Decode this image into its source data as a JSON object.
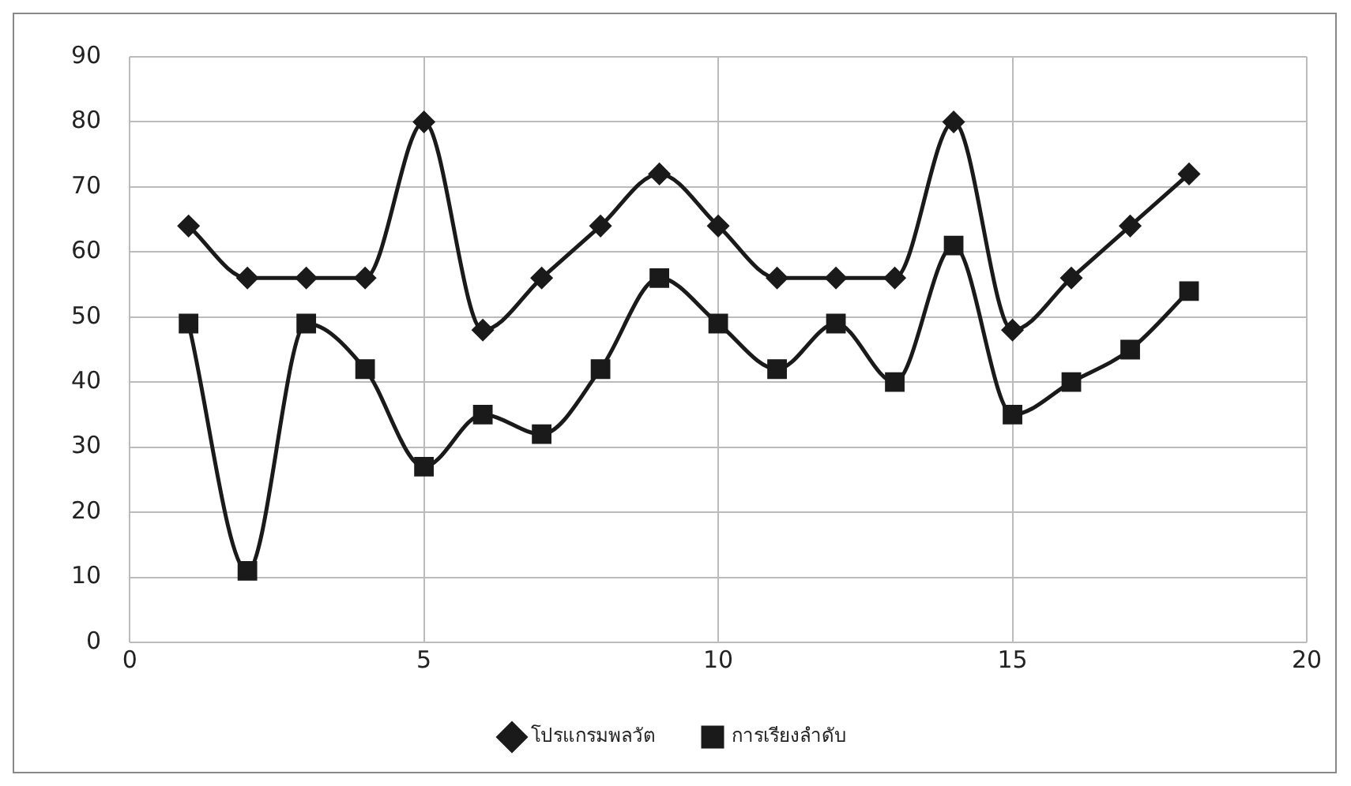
{
  "chart_data": {
    "type": "line",
    "x": [
      1,
      2,
      3,
      4,
      5,
      6,
      7,
      8,
      9,
      10,
      11,
      12,
      13,
      14,
      15,
      16,
      17,
      18
    ],
    "series": [
      {
        "name": "โปรแกรมพลวัต",
        "color": "#1a1a1a",
        "marker": "diamond",
        "values": [
          64,
          56,
          56,
          56,
          80,
          48,
          56,
          64,
          72,
          64,
          56,
          56,
          56,
          80,
          48,
          56,
          64,
          72
        ]
      },
      {
        "name": "การเรียงลำดับ",
        "color": "#1a1a1a",
        "marker": "square",
        "values": [
          49,
          11,
          49,
          42,
          27,
          35,
          32,
          42,
          56,
          49,
          42,
          49,
          40,
          61,
          35,
          40,
          45,
          54
        ]
      }
    ],
    "xlim": [
      0,
      20
    ],
    "xticks": [
      0,
      5,
      10,
      15,
      20
    ],
    "ylim": [
      0,
      90
    ],
    "yticks": [
      0,
      10,
      20,
      30,
      40,
      50,
      60,
      70,
      80,
      90
    ],
    "grid": true,
    "legend": "bottom",
    "line_style": "solid"
  }
}
